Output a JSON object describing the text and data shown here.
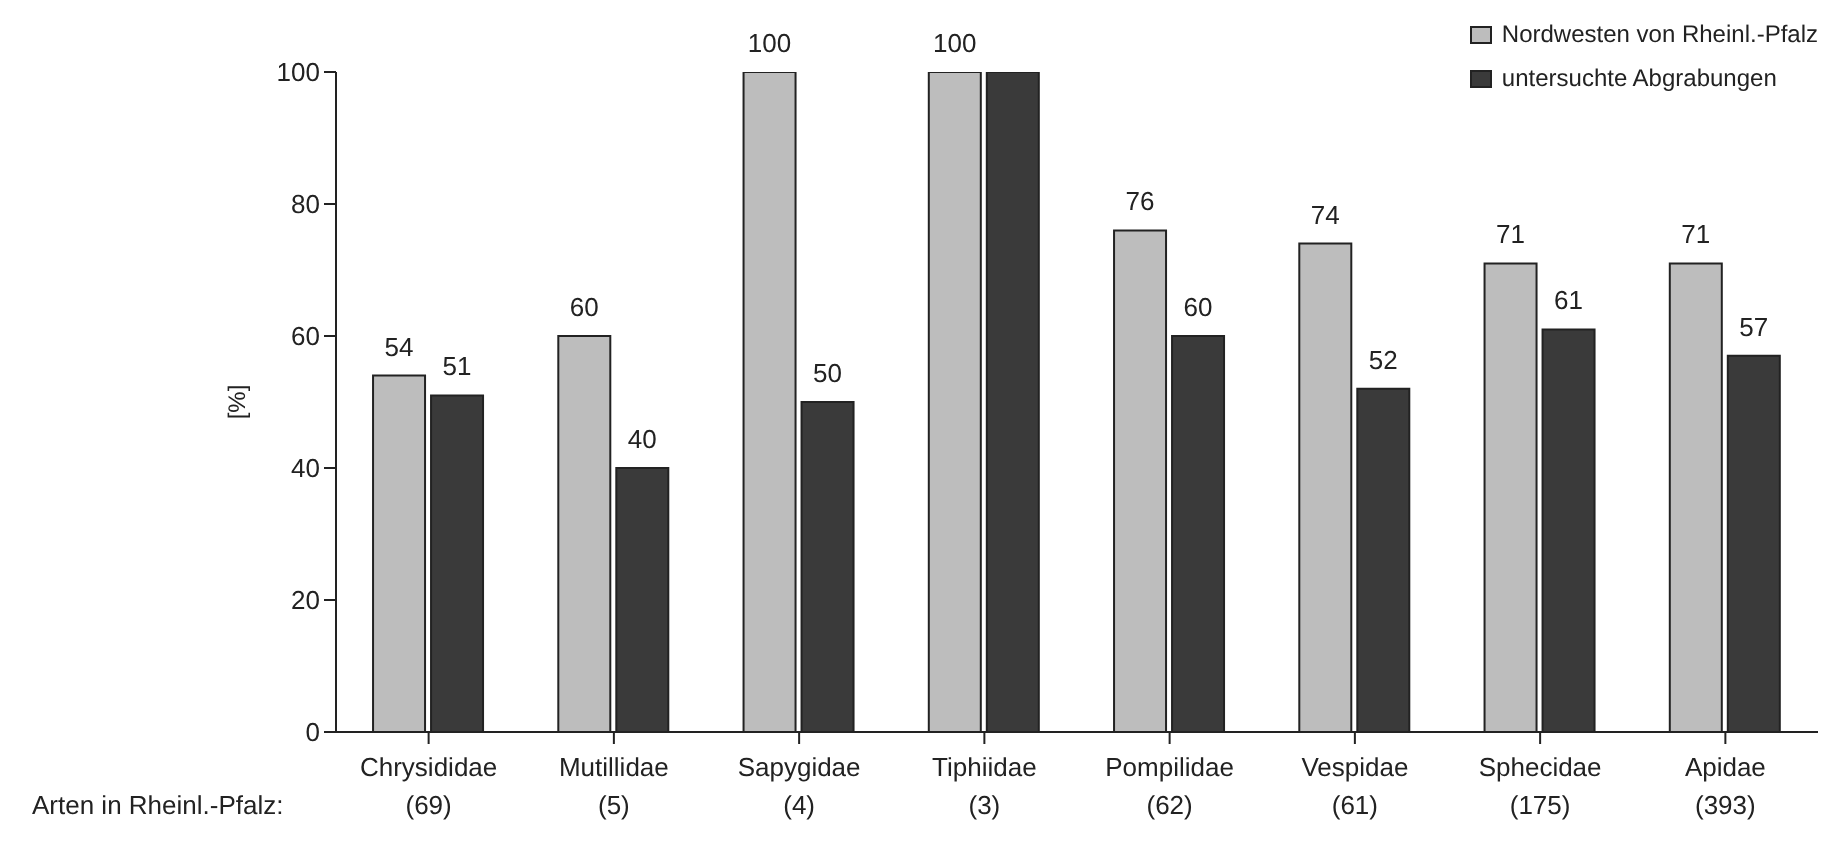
{
  "chart_data": {
    "type": "bar",
    "ylabel": "[%]",
    "categories": [
      "Chrysididae\n(69)",
      "Mutillidae\n(5)",
      "Sapygidae\n(4)",
      "Tiphiidae\n(3)",
      "Pompilidae\n(62)",
      "Vespidae\n(61)",
      "Sphecidae\n(175)",
      "Apidae\n(393)"
    ],
    "series": [
      {
        "name": "Nordwesten von Rheinl.-Pfalz",
        "color": "#bdbdbd",
        "values": [
          54,
          60,
          100,
          100,
          76,
          74,
          71,
          71
        ],
        "value_labels": [
          "54",
          "60",
          "100",
          "100",
          "76",
          "74",
          "71",
          "71"
        ]
      },
      {
        "name": "untersuchte Abgrabungen",
        "color": "#3a3a3a",
        "values": [
          51,
          40,
          50,
          100,
          60,
          52,
          61,
          57
        ],
        "value_labels": [
          "51",
          "40",
          "50",
          null,
          "60",
          "52",
          "61",
          "57"
        ]
      }
    ],
    "ylim": [
      0,
      100
    ],
    "yticks": [
      0,
      20,
      40,
      60,
      80,
      100
    ],
    "legend": "top right",
    "annotations": [
      "Arten in Rheinl.-Pfalz:"
    ]
  }
}
